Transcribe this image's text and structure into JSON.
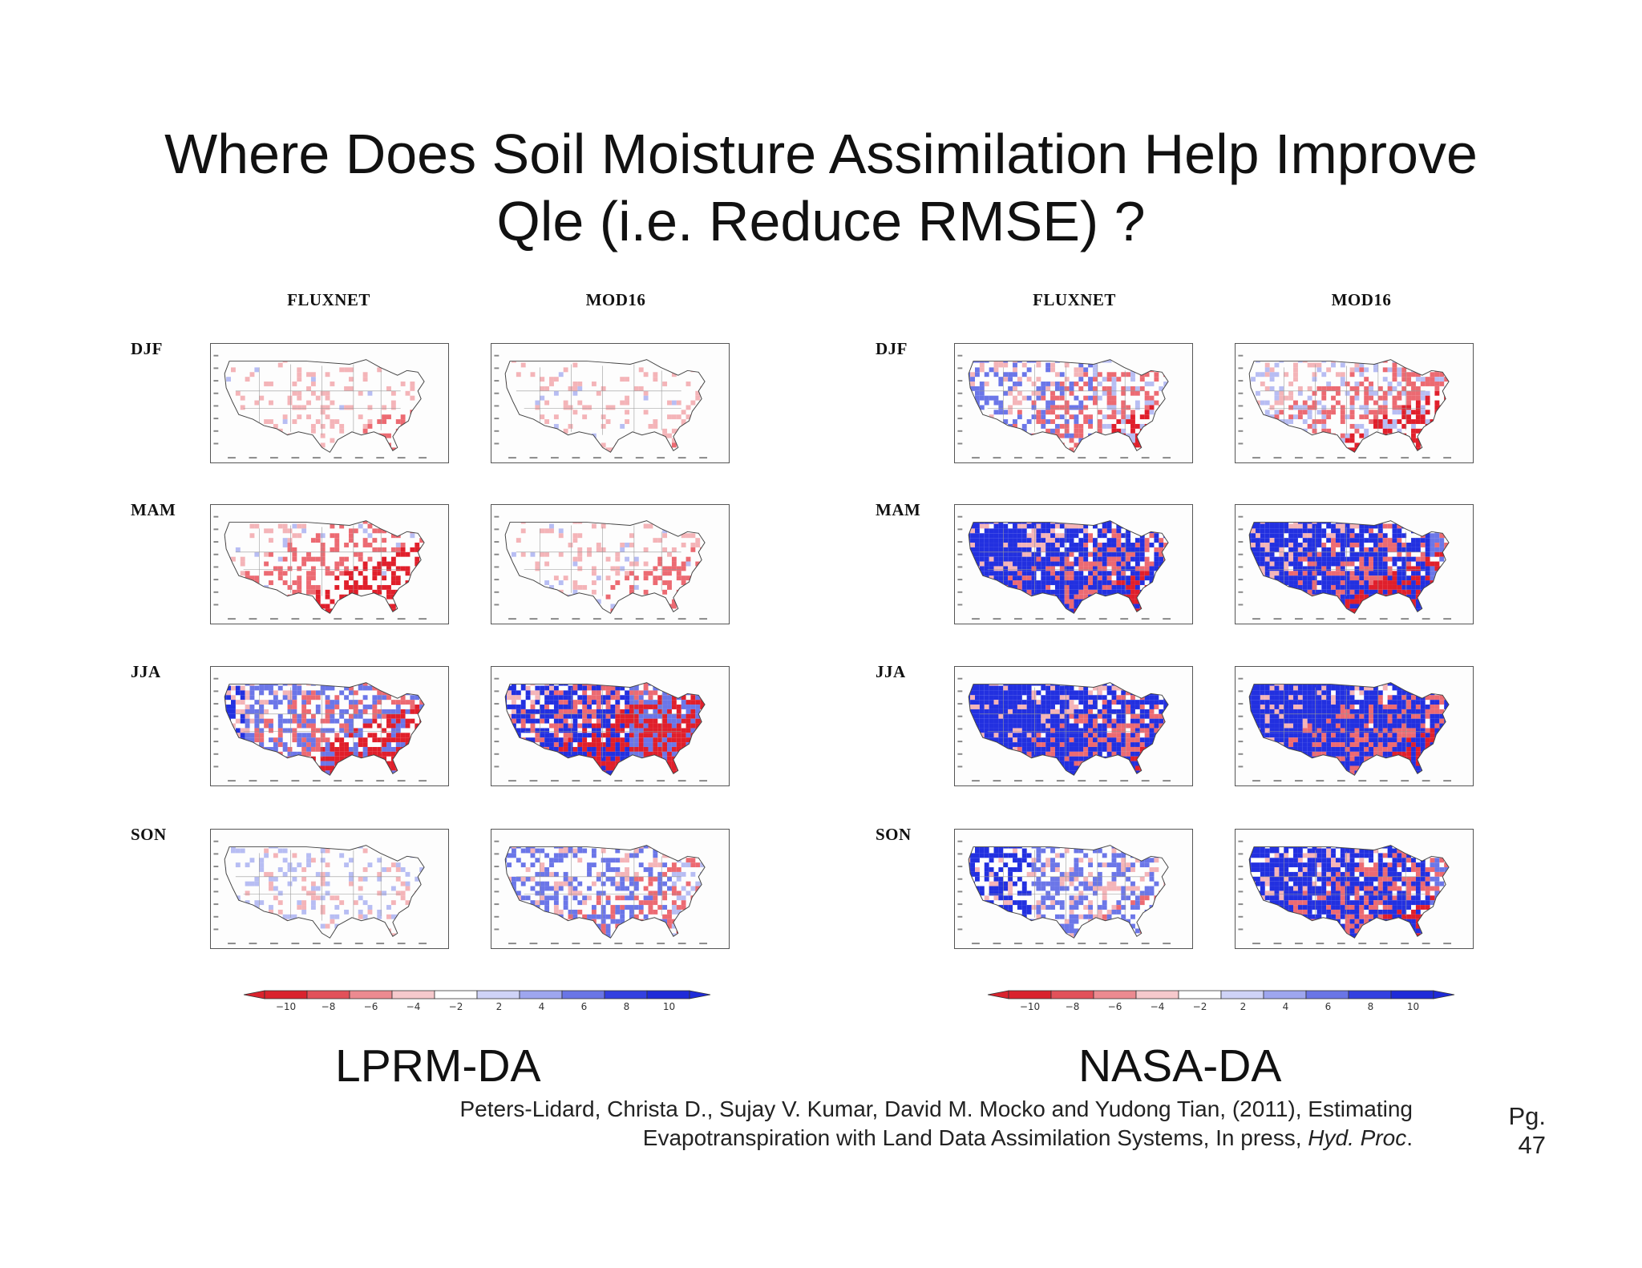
{
  "title": {
    "line1": "Where Does Soil Moisture Assimilation Help Improve",
    "line2": "Qle (i.e. Reduce RMSE) ?"
  },
  "panels": [
    {
      "name": "LPRM-DA",
      "columns": [
        "FLUXNET",
        "MOD16"
      ],
      "rows": [
        "DJF",
        "MAM",
        "JJA",
        "SON"
      ]
    },
    {
      "name": "NASA-DA",
      "columns": [
        "FLUXNET",
        "MOD16"
      ],
      "rows": [
        "DJF",
        "MAM",
        "JJA",
        "SON"
      ]
    }
  ],
  "colorbar": {
    "ticks": [
      "−10",
      "−8",
      "−6",
      "−4",
      "−2",
      "2",
      "4",
      "6",
      "8",
      "10"
    ],
    "colors": [
      "#d9232e",
      "#e2515a",
      "#ec8a90",
      "#f6c9cc",
      "#ffffff",
      "#cfd3f7",
      "#9ea6ef",
      "#6a75e6",
      "#3340e0",
      "#1f2bd8"
    ]
  },
  "citation": {
    "line1": "Peters-Lidard, Christa D., Sujay V. Kumar, David M. Mocko and Yudong Tian, (2011), Estimating",
    "line2_prefix": "Evapotranspiration with Land Data Assimilation Systems, In press, ",
    "journal": "Hyd. Proc",
    "line2_suffix": "."
  },
  "page": {
    "label": "Pg.",
    "number": "47"
  }
}
